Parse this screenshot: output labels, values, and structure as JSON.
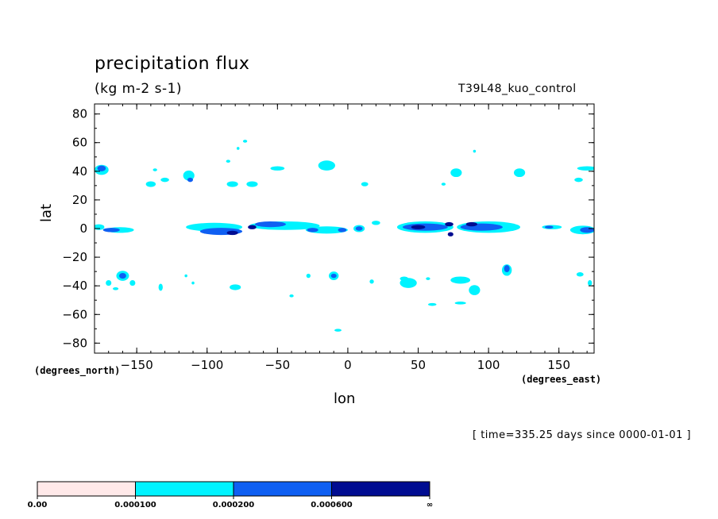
{
  "chart_data": {
    "type": "heatmap",
    "title": "precipitation flux",
    "units": "(kg m-2 s-1)",
    "run_label": "T39L48_kuo_control",
    "xlabel": "lon",
    "ylabel": "lat",
    "x_units": "(degrees_east)",
    "y_units": "(degrees_north)",
    "time_label": "[ time=335.25 days since 0000-01-01 ]",
    "xlim": [
      -180,
      175
    ],
    "ylim": [
      -87,
      87
    ],
    "x_ticks": [
      -150,
      -100,
      -50,
      0,
      50,
      100,
      150
    ],
    "y_ticks": [
      80,
      60,
      40,
      20,
      0,
      -20,
      -40,
      -60,
      -80
    ],
    "x_tick_labels": [
      "-150",
      "-100",
      "-50",
      "0",
      "50",
      "100",
      "150"
    ],
    "y_tick_labels": [
      "80",
      "60",
      "40",
      "20",
      "0",
      "-20",
      "-40",
      "-60",
      "-80"
    ],
    "levels": {
      "bounds": [
        "0.00",
        "0.000100",
        "0.000200",
        "0.000600",
        "∞"
      ],
      "colors": [
        "#ffe9e9",
        "#00f3ff",
        "#0f5ff2",
        "#000c91"
      ]
    },
    "features": [
      {
        "level": 1,
        "lon": -177,
        "lat": 1,
        "w": 8,
        "h": 4
      },
      {
        "level": 1,
        "lon": -162,
        "lat": -1,
        "w": 20,
        "h": 4
      },
      {
        "level": 2,
        "lon": -168,
        "lat": -1,
        "w": 12,
        "h": 3
      },
      {
        "level": 1,
        "lon": -175,
        "lat": 41,
        "w": 10,
        "h": 7
      },
      {
        "level": 2,
        "lon": -175,
        "lat": 42,
        "w": 6,
        "h": 4
      },
      {
        "level": 1,
        "lon": -140,
        "lat": 31,
        "w": 7,
        "h": 4
      },
      {
        "level": 1,
        "lon": -130,
        "lat": 34,
        "w": 6,
        "h": 3
      },
      {
        "level": 1,
        "lon": -113,
        "lat": 37,
        "w": 8,
        "h": 7
      },
      {
        "level": 2,
        "lon": -112,
        "lat": 34,
        "w": 4,
        "h": 3
      },
      {
        "level": 1,
        "lon": -137,
        "lat": 41,
        "w": 3,
        "h": 2
      },
      {
        "level": 1,
        "lon": -82,
        "lat": 31,
        "w": 8,
        "h": 4
      },
      {
        "level": 1,
        "lon": -68,
        "lat": 31,
        "w": 8,
        "h": 4
      },
      {
        "level": 1,
        "lon": -85,
        "lat": 47,
        "w": 3,
        "h": 2
      },
      {
        "level": 1,
        "lon": -50,
        "lat": 42,
        "w": 10,
        "h": 3
      },
      {
        "level": 1,
        "lon": -15,
        "lat": 44,
        "w": 12,
        "h": 7
      },
      {
        "level": 1,
        "lon": 12,
        "lat": 31,
        "w": 5,
        "h": 3
      },
      {
        "level": 1,
        "lon": 77,
        "lat": 39,
        "w": 8,
        "h": 6
      },
      {
        "level": 1,
        "lon": 68,
        "lat": 31,
        "w": 3,
        "h": 2
      },
      {
        "level": 1,
        "lon": 122,
        "lat": 39,
        "w": 8,
        "h": 6
      },
      {
        "level": 1,
        "lon": 170,
        "lat": 42,
        "w": 14,
        "h": 3
      },
      {
        "level": 1,
        "lon": 164,
        "lat": 34,
        "w": 6,
        "h": 3
      },
      {
        "level": 1,
        "lon": -73,
        "lat": 61,
        "w": 3,
        "h": 2
      },
      {
        "level": 1,
        "lon": -78,
        "lat": 56,
        "w": 2,
        "h": 2
      },
      {
        "level": 1,
        "lon": 90,
        "lat": 54,
        "w": 2,
        "h": 2
      },
      {
        "level": 1,
        "lon": -95,
        "lat": 1,
        "w": 40,
        "h": 6
      },
      {
        "level": 2,
        "lon": -90,
        "lat": -2,
        "w": 30,
        "h": 5
      },
      {
        "level": 3,
        "lon": -82,
        "lat": -3,
        "w": 8,
        "h": 3
      },
      {
        "level": 1,
        "lon": -45,
        "lat": 2,
        "w": 50,
        "h": 6
      },
      {
        "level": 2,
        "lon": -55,
        "lat": 3,
        "w": 22,
        "h": 4
      },
      {
        "level": 3,
        "lon": -68,
        "lat": 1,
        "w": 6,
        "h": 3
      },
      {
        "level": 1,
        "lon": -15,
        "lat": -1,
        "w": 30,
        "h": 5
      },
      {
        "level": 2,
        "lon": -25,
        "lat": -1,
        "w": 8,
        "h": 3
      },
      {
        "level": 2,
        "lon": -4,
        "lat": -1,
        "w": 6,
        "h": 3
      },
      {
        "level": 1,
        "lon": 8,
        "lat": 0,
        "w": 8,
        "h": 5
      },
      {
        "level": 2,
        "lon": 8,
        "lat": 0,
        "w": 5,
        "h": 3
      },
      {
        "level": 1,
        "lon": 20,
        "lat": 4,
        "w": 6,
        "h": 3
      },
      {
        "level": 1,
        "lon": 55,
        "lat": 1,
        "w": 40,
        "h": 8
      },
      {
        "level": 2,
        "lon": 55,
        "lat": 1,
        "w": 32,
        "h": 5
      },
      {
        "level": 3,
        "lon": 50,
        "lat": 1,
        "w": 10,
        "h": 3
      },
      {
        "level": 3,
        "lon": 72,
        "lat": 3,
        "w": 6,
        "h": 3
      },
      {
        "level": 1,
        "lon": 100,
        "lat": 1,
        "w": 45,
        "h": 8
      },
      {
        "level": 2,
        "lon": 95,
        "lat": 1,
        "w": 30,
        "h": 5
      },
      {
        "level": 3,
        "lon": 88,
        "lat": 3,
        "w": 8,
        "h": 3
      },
      {
        "level": 3,
        "lon": 73,
        "lat": -4,
        "w": 4,
        "h": 3
      },
      {
        "level": 1,
        "lon": 145,
        "lat": 1,
        "w": 14,
        "h": 3
      },
      {
        "level": 2,
        "lon": 143,
        "lat": 1,
        "w": 6,
        "h": 2
      },
      {
        "level": 1,
        "lon": 167,
        "lat": -1,
        "w": 18,
        "h": 6
      },
      {
        "level": 2,
        "lon": 170,
        "lat": -1,
        "w": 10,
        "h": 4
      },
      {
        "level": 1,
        "lon": -160,
        "lat": -33,
        "w": 9,
        "h": 7
      },
      {
        "level": 2,
        "lon": -160,
        "lat": -33,
        "w": 5,
        "h": 4
      },
      {
        "level": 1,
        "lon": -153,
        "lat": -38,
        "w": 4,
        "h": 4
      },
      {
        "level": 1,
        "lon": -170,
        "lat": -38,
        "w": 4,
        "h": 4
      },
      {
        "level": 1,
        "lon": -165,
        "lat": -42,
        "w": 4,
        "h": 2
      },
      {
        "level": 1,
        "lon": -133,
        "lat": -41,
        "w": 3,
        "h": 5
      },
      {
        "level": 1,
        "lon": -115,
        "lat": -33,
        "w": 2,
        "h": 2
      },
      {
        "level": 1,
        "lon": -110,
        "lat": -38,
        "w": 2,
        "h": 2
      },
      {
        "level": 1,
        "lon": -80,
        "lat": -41,
        "w": 8,
        "h": 4
      },
      {
        "level": 1,
        "lon": -28,
        "lat": -33,
        "w": 3,
        "h": 3
      },
      {
        "level": 1,
        "lon": -10,
        "lat": -33,
        "w": 7,
        "h": 6
      },
      {
        "level": 2,
        "lon": -10,
        "lat": -33,
        "w": 4,
        "h": 3
      },
      {
        "level": 1,
        "lon": 43,
        "lat": -38,
        "w": 12,
        "h": 7
      },
      {
        "level": 1,
        "lon": 40,
        "lat": -35,
        "w": 6,
        "h": 3
      },
      {
        "level": 1,
        "lon": 57,
        "lat": -35,
        "w": 3,
        "h": 2
      },
      {
        "level": 1,
        "lon": 80,
        "lat": -36,
        "w": 14,
        "h": 5
      },
      {
        "level": 1,
        "lon": 90,
        "lat": -43,
        "w": 8,
        "h": 7
      },
      {
        "level": 1,
        "lon": 113,
        "lat": -29,
        "w": 7,
        "h": 8
      },
      {
        "level": 2,
        "lon": 113,
        "lat": -28,
        "w": 4,
        "h": 5
      },
      {
        "level": 1,
        "lon": 60,
        "lat": -53,
        "w": 6,
        "h": 2
      },
      {
        "level": 1,
        "lon": 80,
        "lat": -52,
        "w": 8,
        "h": 2
      },
      {
        "level": 1,
        "lon": -40,
        "lat": -47,
        "w": 3,
        "h": 2
      },
      {
        "level": 1,
        "lon": -7,
        "lat": -71,
        "w": 5,
        "h": 2
      },
      {
        "level": 1,
        "lon": 17,
        "lat": -37,
        "w": 3,
        "h": 3
      },
      {
        "level": 1,
        "lon": 165,
        "lat": -32,
        "w": 5,
        "h": 3
      },
      {
        "level": 1,
        "lon": 172,
        "lat": -38,
        "w": 3,
        "h": 4
      }
    ]
  }
}
